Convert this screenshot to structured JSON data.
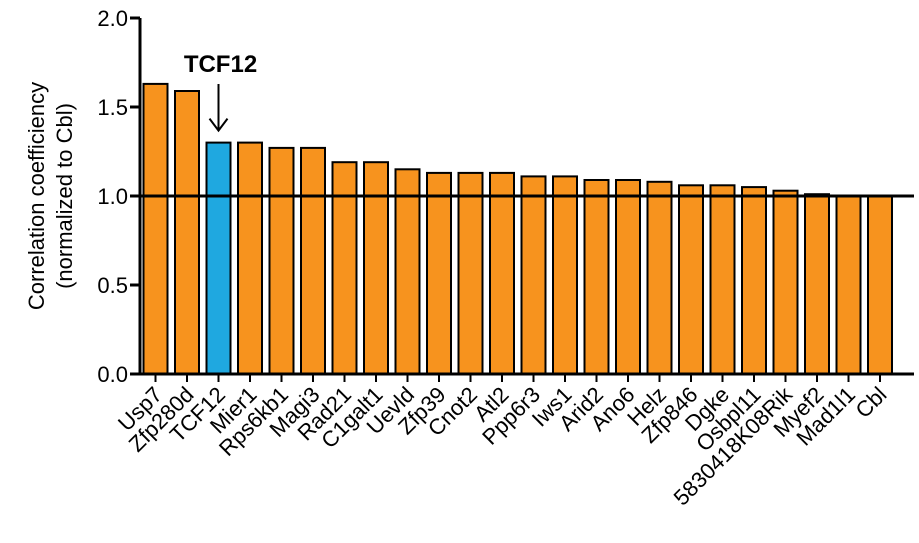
{
  "chart_data": {
    "type": "bar",
    "ylabel_lines": [
      "Correlation coefficiency",
      "(normalized to Cbl)"
    ],
    "ylim": [
      0,
      2.0
    ],
    "yticks": [
      "0.0",
      "0.5",
      "1.0",
      "1.5",
      "2.0"
    ],
    "reference_line": 1.0,
    "annotation": {
      "text": "TCF12",
      "target": "TCF12"
    },
    "grid": false,
    "colors": {
      "default": "#F7931E",
      "highlight": "#1FA8E0",
      "outline": "#000000"
    },
    "categories": [
      "Usp7",
      "Zfp280d",
      "TCF12",
      "Mier1",
      "Rps6kb1",
      "Magi3",
      "Rad21",
      "C1galt1",
      "Uevld",
      "Zfp39",
      "Cnot2",
      "Atl2",
      "Ppp6r3",
      "Iws1",
      "Arid2",
      "Ano6",
      "Helz",
      "Zfp846",
      "Dgke",
      "Osbpl11",
      "5830418K08Rik",
      "Myef2",
      "Mad1l1",
      "Cbl"
    ],
    "values": [
      1.63,
      1.59,
      1.3,
      1.3,
      1.27,
      1.27,
      1.19,
      1.19,
      1.15,
      1.13,
      1.13,
      1.13,
      1.11,
      1.11,
      1.09,
      1.09,
      1.08,
      1.06,
      1.06,
      1.05,
      1.03,
      1.01,
      1.0,
      1.0
    ],
    "highlight": [
      "TCF12"
    ]
  }
}
